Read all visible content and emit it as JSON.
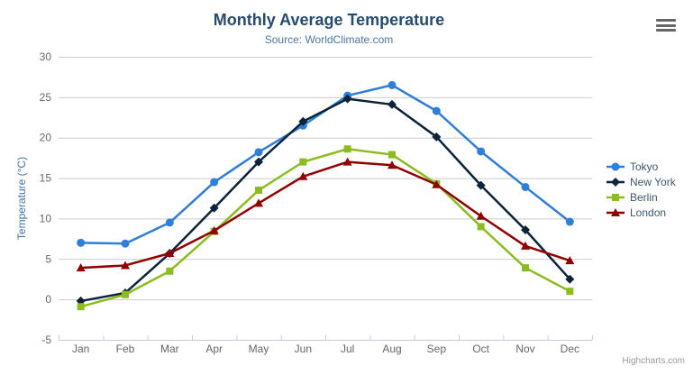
{
  "chart_data": {
    "type": "line",
    "title": "Monthly Average Temperature",
    "subtitle": "Source: WorldClimate.com",
    "xlabel": "",
    "ylabel": "Temperature (°C)",
    "categories": [
      "Jan",
      "Feb",
      "Mar",
      "Apr",
      "May",
      "Jun",
      "Jul",
      "Aug",
      "Sep",
      "Oct",
      "Nov",
      "Dec"
    ],
    "ylim": [
      -5,
      30
    ],
    "ytick_step": 5,
    "grid": true,
    "legend_position": "right",
    "series": [
      {
        "name": "Tokyo",
        "color": "#2f7ed8",
        "marker": "circle",
        "values": [
          7.0,
          6.9,
          9.5,
          14.5,
          18.2,
          21.5,
          25.2,
          26.5,
          23.3,
          18.3,
          13.9,
          9.6
        ]
      },
      {
        "name": "New York",
        "color": "#0d233a",
        "marker": "diamond",
        "values": [
          -0.2,
          0.8,
          5.7,
          11.3,
          17.0,
          22.0,
          24.8,
          24.1,
          20.1,
          14.1,
          8.6,
          2.5
        ]
      },
      {
        "name": "Berlin",
        "color": "#8bbc21",
        "marker": "square",
        "values": [
          -0.9,
          0.6,
          3.5,
          8.4,
          13.5,
          17.0,
          18.6,
          17.9,
          14.3,
          9.0,
          3.9,
          1.0
        ]
      },
      {
        "name": "London",
        "color": "#910000",
        "marker": "triangle",
        "values": [
          3.9,
          4.2,
          5.7,
          8.5,
          11.9,
          15.2,
          17.0,
          16.6,
          14.2,
          10.3,
          6.6,
          4.8
        ]
      }
    ],
    "colors": {
      "grid_line": "#cccccc",
      "axis_line": "#c0d0e0",
      "axis_label": "#666666",
      "title_text": "#274b6d",
      "subtitle_text": "#4d759e",
      "yaxis_title_text": "#4572a7",
      "legend_text": "#3e576f"
    }
  },
  "credits": {
    "label": "Highcharts.com"
  },
  "menu": {
    "icon": "hamburger-icon"
  }
}
